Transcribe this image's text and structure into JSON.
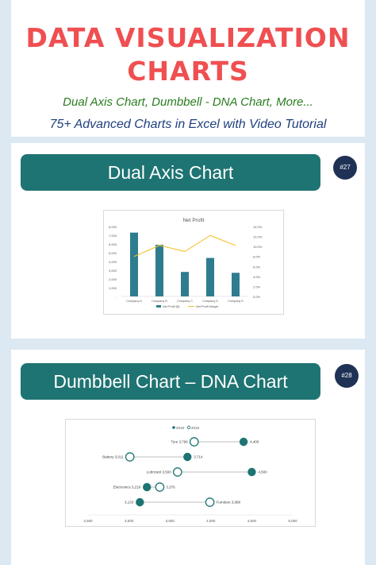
{
  "header": {
    "title_line1": "DATA VISUALIZATION",
    "title_line2": "CHARTS",
    "subtitle1": "Dual Axis Chart, Dumbbell - DNA Chart, More...",
    "subtitle2": "75+ Advanced Charts in Excel with Video Tutorial"
  },
  "sections": [
    {
      "title": "Dual Axis Chart",
      "badge": "#27"
    },
    {
      "title": "Dumbbell Chart – DNA Chart",
      "badge": "#28"
    }
  ],
  "colors": {
    "title": "#ef4f51",
    "banner": "#1e7472",
    "bar": "#2e7c8f",
    "line": "#f2c12e",
    "badge": "#1f3155"
  },
  "chart_data": [
    {
      "type": "bar",
      "title": "Net Profit",
      "categories": [
        "Company A",
        "Company B",
        "Company C",
        "Company D",
        "Company E"
      ],
      "y_ticks": [
        "8,000",
        "7,000",
        "6,000",
        "5,000",
        "4,000",
        "3,000",
        "2,000",
        "1,000",
        "-"
      ],
      "y2_ticks": [
        "14.0%",
        "12.0%",
        "10.0%",
        "8.0%",
        "6.0%",
        "4.0%",
        "2.0%",
        "0.0%"
      ],
      "ylim": [
        0,
        8000
      ],
      "y2lim": [
        0,
        14
      ],
      "series": [
        {
          "name": "Net Profit ($)",
          "kind": "bar",
          "values": [
            7300,
            5900,
            2800,
            4400,
            2700
          ]
        },
        {
          "name": "Net Profit Margin",
          "kind": "line",
          "axis": "secondary",
          "values": [
            8.0,
            10.2,
            9.0,
            12.2,
            10.2
          ]
        }
      ]
    },
    {
      "type": "dumbbell",
      "legend": [
        "2019",
        "2018"
      ],
      "x_ticks": [
        "2,500",
        "3,000",
        "3,500",
        "4,000",
        "4,500",
        "5,000"
      ],
      "xlim": [
        2500,
        5000
      ],
      "rows": [
        {
          "left_label": "Tyre 3,796",
          "right_label": "4,400",
          "v2018": 3796,
          "v2019": 4400
        },
        {
          "left_label": "Battery 3,011",
          "right_label": "3,714",
          "v2018": 3011,
          "v2019": 3714
        },
        {
          "left_label": "Lubricant 3,593",
          "right_label": "4,500",
          "v2018": 3593,
          "v2019": 4500
        },
        {
          "left_label": "Electronics 3,219",
          "right_label": "3,376",
          "v2018": 3376,
          "v2019": 3219
        },
        {
          "left_label": "3,133",
          "right_label": "Furniture 3,988",
          "v2018": 3988,
          "v2019": 3133
        }
      ]
    }
  ]
}
